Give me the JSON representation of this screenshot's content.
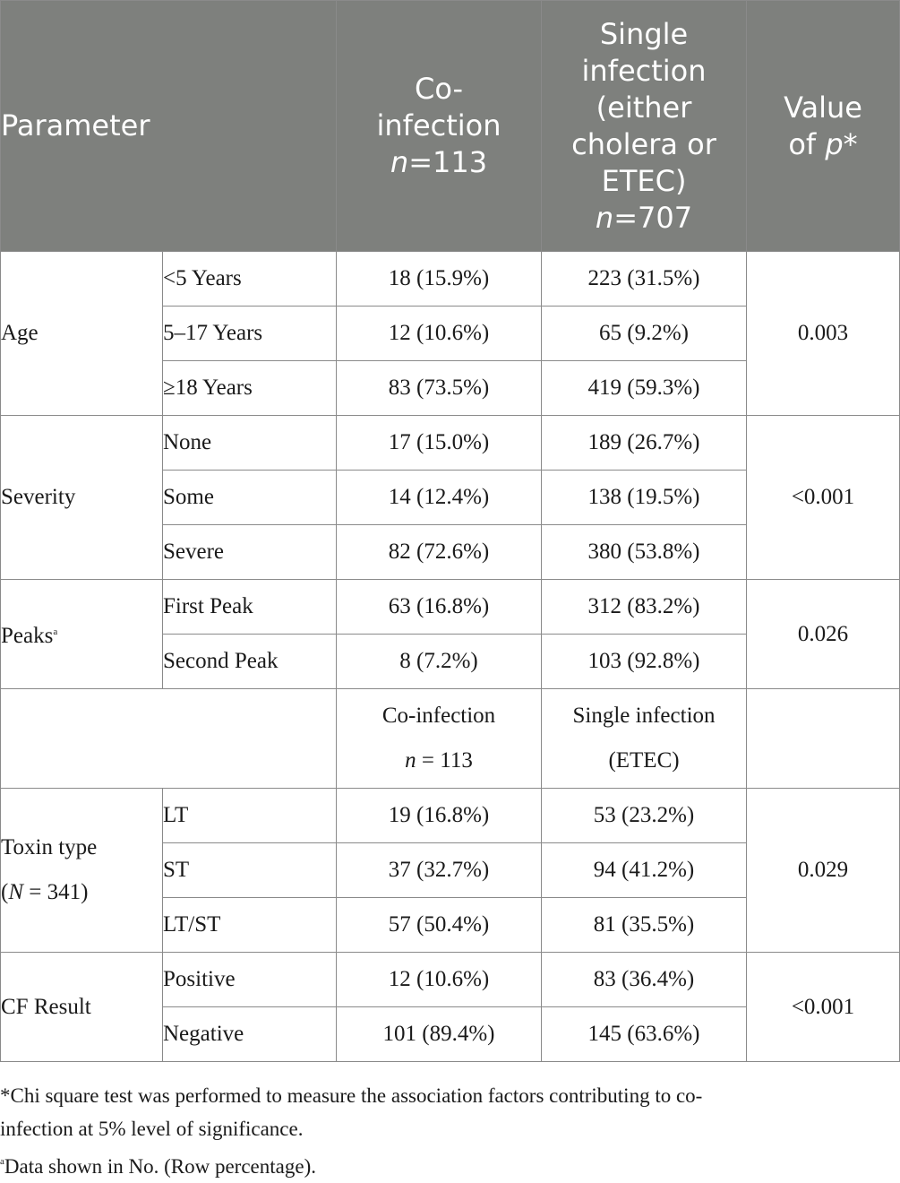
{
  "header": {
    "parameter": "Parameter",
    "coinfection": [
      "Co-",
      "infection"
    ],
    "coinfection_n": "=113",
    "single": [
      "Single",
      "infection",
      "(either",
      "cholera or",
      "ETEC)"
    ],
    "single_n": "=707",
    "value_line1": "Value",
    "value_of": "of ",
    "value_p": "p",
    "value_star": "*",
    "n_letter": "n"
  },
  "age": {
    "label": "Age",
    "p": "0.003",
    "rows": [
      {
        "sub": "<5 Years",
        "co": "18 (15.9%)",
        "single": "223 (31.5%)"
      },
      {
        "sub": "5–17 Years",
        "co": "12 (10.6%)",
        "single": "65 (9.2%)"
      },
      {
        "sub": "≥18 Years",
        "co": "83 (73.5%)",
        "single": "419 (59.3%)"
      }
    ]
  },
  "severity": {
    "label": "Severity",
    "p": "<0.001",
    "rows": [
      {
        "sub": "None",
        "co": "17 (15.0%)",
        "single": "189 (26.7%)"
      },
      {
        "sub": "Some",
        "co": "14 (12.4%)",
        "single": "138 (19.5%)"
      },
      {
        "sub": "Severe",
        "co": "82 (72.6%)",
        "single": "380 (53.8%)"
      }
    ]
  },
  "peaks": {
    "label": "Peaks",
    "sup": "a",
    "p": "0.026",
    "rows": [
      {
        "sub": "First Peak",
        "co": "63 (16.8%)",
        "single": "312 (83.2%)"
      },
      {
        "sub": "Second Peak",
        "co": "8 (7.2%)",
        "single": "103 (92.8%)"
      }
    ]
  },
  "midheader": {
    "co_line1": "Co-infection",
    "co_n_letter": "n",
    "co_n_value": " = 113",
    "single_line1": "Single infection",
    "single_line2": "(ETEC)"
  },
  "toxin": {
    "label_line1": "Toxin type",
    "label_open": "(",
    "label_n": "N",
    "label_rest": " = 341)",
    "p": "0.029",
    "rows": [
      {
        "sub": "LT",
        "co": "19 (16.8%)",
        "single": "53 (23.2%)"
      },
      {
        "sub": "ST",
        "co": "37 (32.7%)",
        "single": "94 (41.2%)"
      },
      {
        "sub": "LT/ST",
        "co": "57 (50.4%)",
        "single": "81 (35.5%)"
      }
    ]
  },
  "cf": {
    "label": "CF Result",
    "p": "<0.001",
    "rows": [
      {
        "sub": "Positive",
        "co": "12 (10.6%)",
        "single": "83 (36.4%)"
      },
      {
        "sub": "Negative",
        "co": "101 (89.4%)",
        "single": "145 (63.6%)"
      }
    ]
  },
  "footnotes": {
    "chi_line1": "*Chi square test was performed to measure the association factors contributing to co-",
    "chi_line2": "infection at 5% level of significance.",
    "a_sup": "a",
    "a_text": "Data shown in No. (Row percentage)."
  }
}
